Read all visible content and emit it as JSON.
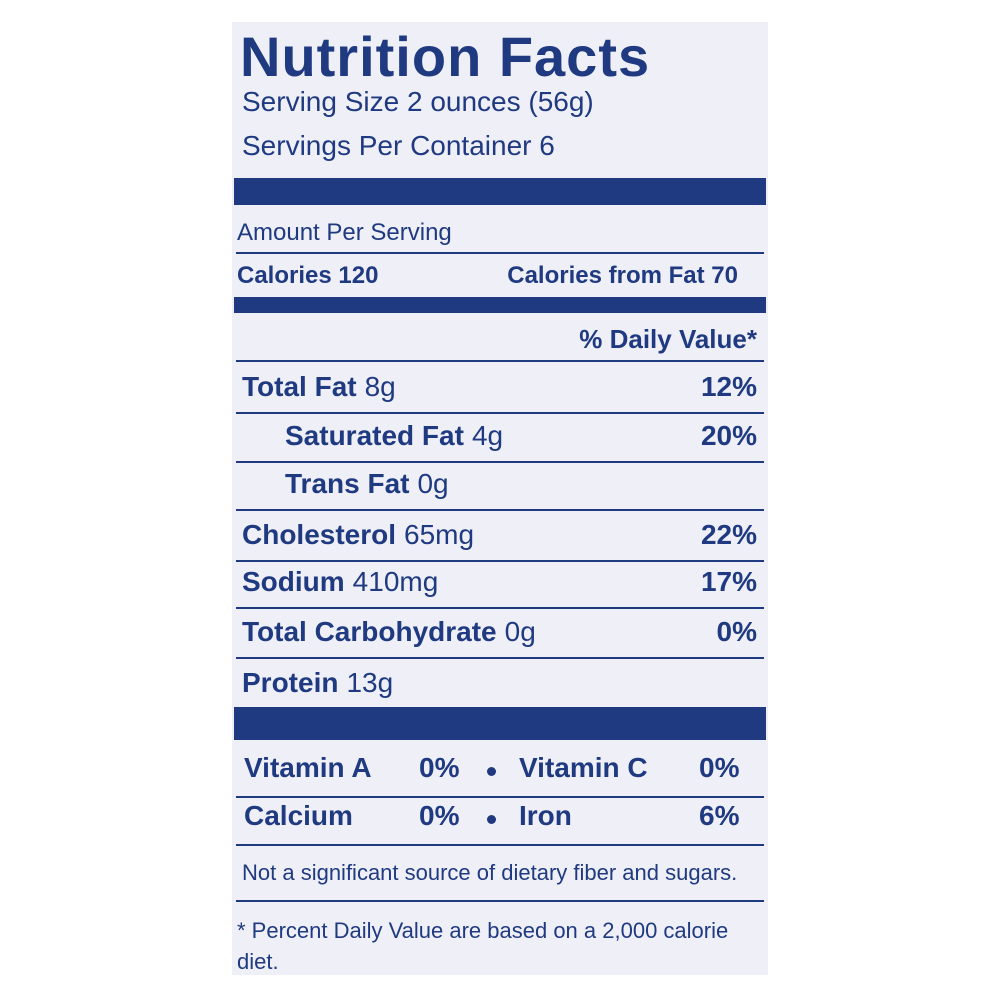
{
  "header": {
    "title": "Nutrition Facts",
    "serving_size": "Serving Size 2 ounces (56g)",
    "servings_per_container": "Servings Per Container 6"
  },
  "amount_per_serving": "Amount Per Serving",
  "calories": "Calories 120",
  "calories_from_fat": "Calories from Fat 70",
  "daily_value_header": "% Daily Value*",
  "nutrients": [
    {
      "name": "Total Fat",
      "amount": "8g",
      "dv": "12%"
    },
    {
      "name": "Saturated Fat",
      "amount": "4g",
      "dv": "20%"
    },
    {
      "name": "Trans Fat",
      "amount": "0g"
    },
    {
      "name": "Cholesterol",
      "amount": "65mg",
      "dv": "22%"
    },
    {
      "name": "Sodium",
      "amount": "410mg",
      "dv": "17%"
    },
    {
      "name": "Total Carbohydrate",
      "amount": "0g",
      "dv": "0%"
    },
    {
      "name": "Protein",
      "amount": "13g"
    }
  ],
  "vitamins": [
    [
      {
        "name": "Vitamin A",
        "dv": "0%"
      },
      {
        "name": "Vitamin C",
        "dv": "0%"
      }
    ],
    [
      {
        "name": "Calcium",
        "dv": "0%"
      },
      {
        "name": "Iron",
        "dv": "6%"
      }
    ]
  ],
  "footnotes": [
    "Not a significant source of dietary fiber and sugars.",
    "* Percent Daily Value are based on a 2,000 calorie diet."
  ]
}
